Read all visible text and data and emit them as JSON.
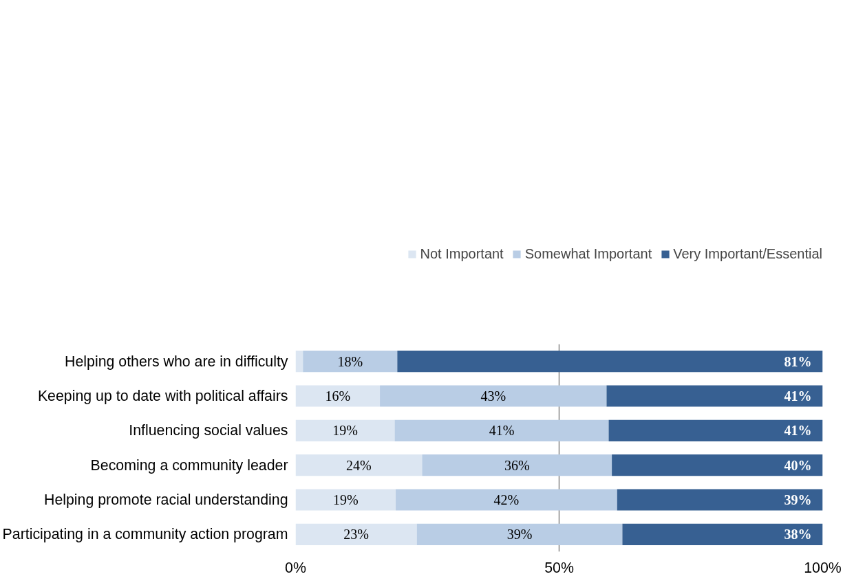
{
  "chart_data": {
    "type": "bar",
    "orientation": "horizontal",
    "stacked": true,
    "categories": [
      "Helping others who are in difficulty",
      "Keeping up to date with political affairs",
      "Influencing social values",
      "Becoming a community leader",
      "Helping promote racial understanding",
      "Participating in a community action program"
    ],
    "series": [
      {
        "name": "Not Important",
        "color": "#dce6f2",
        "values": [
          1.4,
          16,
          18.8,
          24,
          19,
          23
        ],
        "value_labels": [
          null,
          "16%",
          "19%",
          "24%",
          "19%",
          "23%"
        ]
      },
      {
        "name": "Somewhat Important",
        "color": "#b9cde5",
        "values": [
          17.9,
          43,
          40.6,
          36,
          42,
          39
        ],
        "value_labels": [
          "18%",
          "43%",
          "41%",
          "36%",
          "42%",
          "39%"
        ]
      },
      {
        "name": "Very Important/Essential",
        "color": "#376092",
        "values": [
          80.7,
          41,
          40.6,
          40,
          39,
          38
        ],
        "value_labels": [
          "81%",
          "41%",
          "41%",
          "40%",
          "39%",
          "38%"
        ]
      }
    ],
    "xlim": [
      0,
      100
    ],
    "xticks": [
      {
        "value": 0,
        "label": "0%"
      },
      {
        "value": 50,
        "label": "50%"
      },
      {
        "value": 100,
        "label": "100%"
      }
    ],
    "grid": "x",
    "legend": "top right"
  }
}
